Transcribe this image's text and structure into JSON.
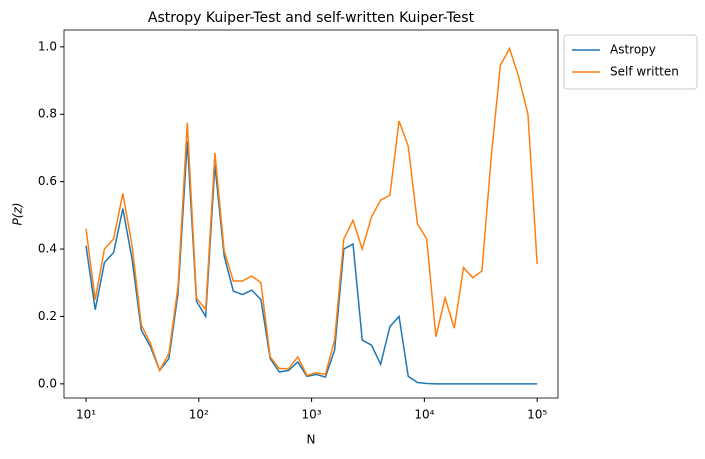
{
  "chart_data": {
    "type": "line",
    "title": "Astropy Kuiper-Test and self-written Kuiper-Test",
    "xlabel": "N",
    "ylabel": "P(z)",
    "xscale": "log",
    "legend": "outside-upper-right",
    "xlim": [
      6.38,
      153000
    ],
    "ylim": [
      -0.042,
      1.05
    ],
    "xticks": [
      {
        "value": 10,
        "label": "10¹"
      },
      {
        "value": 100,
        "label": "10²"
      },
      {
        "value": 1000,
        "label": "10³"
      },
      {
        "value": 10000,
        "label": "10⁴"
      },
      {
        "value": 100000,
        "label": "10⁵"
      }
    ],
    "yticks": [
      {
        "value": 0,
        "label": "0.0"
      },
      0.2,
      0.4,
      0.6,
      0.8,
      {
        "value": 1,
        "label": "1.0"
      }
    ],
    "x": [
      10,
      12.07,
      14.56,
      17.58,
      21.21,
      25.6,
      30.89,
      37.28,
      44.99,
      54.29,
      65.51,
      79.06,
      95.41,
      115.1,
      138.9,
      167.7,
      202.4,
      244.2,
      294.7,
      355.6,
      429.2,
      517.9,
      625.1,
      754.3,
      910.3,
      1099,
      1326,
      1600,
      1931,
      2330,
      2812,
      3393,
      4095,
      4942,
      5964,
      7197,
      8685,
      10481,
      12649,
      15264,
      18421,
      22230,
      26827,
      32375,
      39069,
      47149,
      56899,
      68665,
      82864,
      100000
    ],
    "series": [
      {
        "name": "Astropy",
        "color": "#1f77b4",
        "values": [
          0.41,
          0.22,
          0.36,
          0.39,
          0.52,
          0.37,
          0.16,
          0.11,
          0.04,
          0.075,
          0.27,
          0.72,
          0.245,
          0.2,
          0.65,
          0.38,
          0.275,
          0.265,
          0.278,
          0.25,
          0.075,
          0.035,
          0.04,
          0.065,
          0.022,
          0.028,
          0.02,
          0.1,
          0.4,
          0.415,
          0.13,
          0.115,
          0.058,
          0.17,
          0.2,
          0.022,
          0.004,
          0.001,
          0,
          0,
          0,
          0,
          0,
          0,
          0,
          0,
          0,
          0,
          0,
          0
        ]
      },
      {
        "name": "Self written",
        "color": "#ff7f0e",
        "values": [
          0.46,
          0.25,
          0.4,
          0.43,
          0.565,
          0.41,
          0.175,
          0.12,
          0.04,
          0.09,
          0.29,
          0.775,
          0.255,
          0.22,
          0.685,
          0.395,
          0.305,
          0.305,
          0.32,
          0.3,
          0.08,
          0.045,
          0.045,
          0.08,
          0.025,
          0.033,
          0.028,
          0.13,
          0.43,
          0.485,
          0.4,
          0.495,
          0.545,
          0.56,
          0.78,
          0.705,
          0.475,
          0.43,
          0.14,
          0.255,
          0.165,
          0.345,
          0.315,
          0.335,
          0.67,
          0.945,
          0.995,
          0.91,
          0.8,
          0.355
        ]
      }
    ]
  }
}
